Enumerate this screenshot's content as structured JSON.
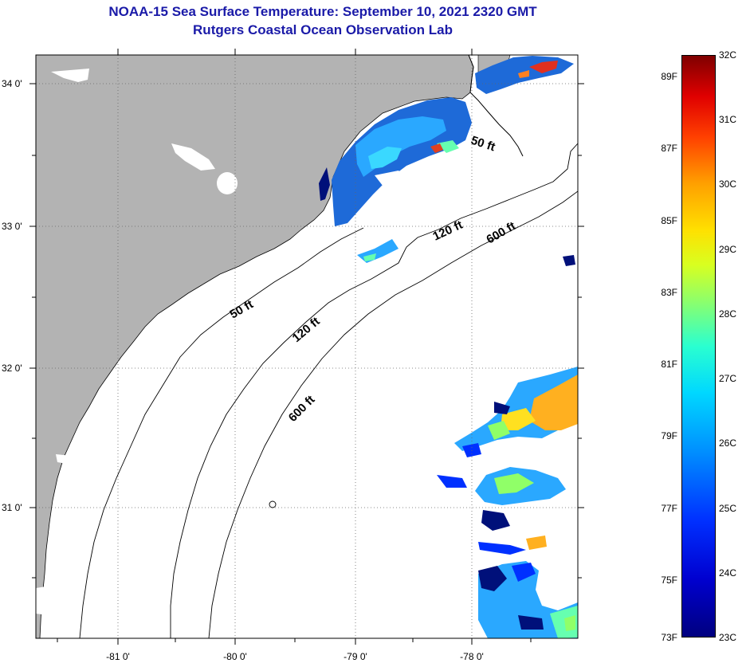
{
  "title": {
    "line1": "NOAA-15 Sea Surface Temperature:  September 10, 2021 2320 GMT",
    "line2": "Rutgers Coastal Ocean Observation Lab"
  },
  "colors": {
    "land": "#b3b3b3",
    "ocean": "#ffffff",
    "title": "#1a1aa8"
  },
  "map": {
    "lon_range": [
      -81.7,
      -77.2
    ],
    "lat_range": [
      30.2,
      34.2
    ],
    "lat_labels": [
      "34 0'",
      "33 0'",
      "32 0'",
      "31 0'"
    ],
    "lon_labels": [
      "-81 0'",
      "-80 0'",
      "-79 0'",
      "-78 0'"
    ],
    "isobaths": [
      {
        "label": "50 ft"
      },
      {
        "label": "120 ft"
      },
      {
        "label": "600 ft"
      },
      {
        "label": "50 ft"
      },
      {
        "label": "120 ft"
      },
      {
        "label": "600 ft"
      }
    ]
  },
  "colorbar": {
    "fahrenheit": [
      "89F",
      "87F",
      "85F",
      "83F",
      "81F",
      "79F",
      "77F",
      "75F",
      "73F"
    ],
    "celsius": [
      "32C",
      "31C",
      "30C",
      "29C",
      "28C",
      "27C",
      "26C",
      "25C",
      "24C",
      "23C"
    ]
  }
}
